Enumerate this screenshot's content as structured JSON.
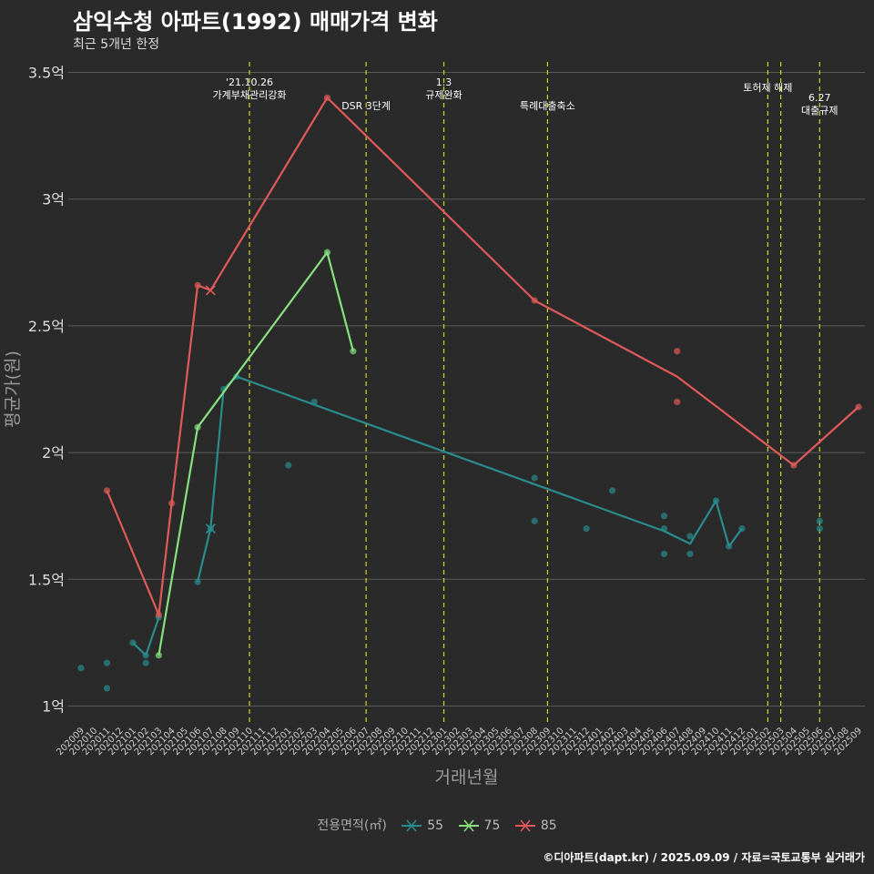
{
  "title": "삼익수청 아파트(1992) 매매가격 변화",
  "subtitle": "최근 5개년 한정",
  "caption": "©디아파트(dapt.kr) / 2025.09.09 / 자료=국토교통부 실거래가",
  "legend_title": "전용면적(㎡)",
  "colors": {
    "s55": "#2a8c8c",
    "s75": "#86e07e",
    "s85": "#e05a5a",
    "vline": "#d4d42a",
    "grid": "#5a5a5a"
  },
  "chart_data": {
    "type": "line",
    "xlabel": "거래년월",
    "ylabel": "평균가(원)",
    "ylim": [
      0.93,
      3.57
    ],
    "yticks": [
      1,
      1.5,
      2,
      2.5,
      3,
      3.5
    ],
    "ytick_labels": [
      "1억",
      "1.5억",
      "2억",
      "2.5억",
      "3억",
      "3.5억"
    ],
    "categories": [
      "202009",
      "202010",
      "202011",
      "202012",
      "202101",
      "202102",
      "202103",
      "202104",
      "202105",
      "202106",
      "202107",
      "202108",
      "202109",
      "202110",
      "202111",
      "202112",
      "202201",
      "202202",
      "202203",
      "202204",
      "202205",
      "202206",
      "202207",
      "202208",
      "202209",
      "202210",
      "202211",
      "202212",
      "202301",
      "202302",
      "202303",
      "202304",
      "202305",
      "202306",
      "202307",
      "202308",
      "202309",
      "202310",
      "202311",
      "202312",
      "202401",
      "202402",
      "202403",
      "202404",
      "202405",
      "202406",
      "202407",
      "202408",
      "202409",
      "202410",
      "202411",
      "202412",
      "202501",
      "202502",
      "202503",
      "202504",
      "202505",
      "202506",
      "202507",
      "202508",
      "202509"
    ],
    "series": [
      {
        "name": "55",
        "color": "#2a8c8c",
        "line": [
          [
            "202101",
            1.25
          ],
          [
            "202102",
            1.2
          ],
          [
            "202103",
            1.35
          ],
          [
            "202104",
            null
          ],
          [
            "202105",
            null
          ],
          [
            "202106",
            1.49
          ],
          [
            "202107",
            1.7
          ],
          [
            "202108",
            2.25
          ],
          [
            "202109",
            2.3
          ],
          [
            "202406",
            1.69
          ],
          [
            "202408",
            1.64
          ],
          [
            "202410",
            1.81
          ],
          [
            "202411",
            1.63
          ],
          [
            "202412",
            1.7
          ]
        ],
        "points": [
          [
            "202009",
            1.15
          ],
          [
            "202011",
            1.17
          ],
          [
            "202011",
            1.07
          ],
          [
            "202101",
            1.25
          ],
          [
            "202102",
            1.17
          ],
          [
            "202102",
            1.2
          ],
          [
            "202103",
            1.35
          ],
          [
            "202106",
            1.49
          ],
          [
            "202107",
            1.7
          ],
          [
            "202108",
            2.25
          ],
          [
            "202109",
            2.3
          ],
          [
            "202201",
            1.95
          ],
          [
            "202203",
            2.2
          ],
          [
            "202308",
            1.9
          ],
          [
            "202308",
            1.73
          ],
          [
            "202312",
            1.7
          ],
          [
            "202402",
            1.85
          ],
          [
            "202406",
            1.75
          ],
          [
            "202406",
            1.7
          ],
          [
            "202406",
            1.6
          ],
          [
            "202408",
            1.67
          ],
          [
            "202408",
            1.6
          ],
          [
            "202410",
            1.81
          ],
          [
            "202411",
            1.63
          ],
          [
            "202412",
            1.7
          ],
          [
            "202506",
            1.73
          ],
          [
            "202506",
            1.7
          ]
        ],
        "cross": [
          [
            "202107",
            1.7
          ]
        ]
      },
      {
        "name": "75",
        "color": "#86e07e",
        "line": [
          [
            "202103",
            1.2
          ],
          [
            "202106",
            2.1
          ],
          [
            "202204",
            2.79
          ],
          [
            "202206",
            2.4
          ]
        ],
        "points": [
          [
            "202103",
            1.2
          ],
          [
            "202106",
            2.1
          ],
          [
            "202204",
            2.79
          ],
          [
            "202206",
            2.4
          ]
        ],
        "cross": []
      },
      {
        "name": "85",
        "color": "#e05a5a",
        "line": [
          [
            "202011",
            1.85
          ],
          [
            "202103",
            1.36
          ],
          [
            "202104",
            1.8
          ],
          [
            "202106",
            2.66
          ],
          [
            "202107",
            2.64
          ],
          [
            "202204",
            3.4
          ],
          [
            "202308",
            2.6
          ],
          [
            "202407",
            2.3
          ],
          [
            "202504",
            1.95
          ],
          [
            "202509",
            2.18
          ]
        ],
        "points": [
          [
            "202011",
            1.85
          ],
          [
            "202103",
            1.36
          ],
          [
            "202104",
            1.8
          ],
          [
            "202106",
            2.66
          ],
          [
            "202204",
            3.4
          ],
          [
            "202308",
            2.6
          ],
          [
            "202407",
            2.4
          ],
          [
            "202407",
            2.2
          ],
          [
            "202504",
            1.95
          ],
          [
            "202509",
            2.18
          ]
        ],
        "cross": [
          [
            "202107",
            2.64
          ]
        ]
      }
    ],
    "annotations": [
      {
        "x": "202110",
        "lines": [
          "'21.10.26",
          "가계부채관리강화"
        ],
        "row": 0
      },
      {
        "x": "202207",
        "lines": [
          "DSR 3단계"
        ],
        "row": 2
      },
      {
        "x": "202301",
        "lines": [
          "1.3",
          "규제완화"
        ],
        "row": 0
      },
      {
        "x": "202309",
        "lines": [
          "특례대출축소"
        ],
        "row": 2
      },
      {
        "x": "202502",
        "lines": [
          "토허제 해제"
        ],
        "row": 1
      },
      {
        "x": "202503",
        "lines": [],
        "row": 1
      },
      {
        "x": "202506",
        "lines": [
          "6.27",
          "대출규제"
        ],
        "row": 3
      }
    ]
  }
}
